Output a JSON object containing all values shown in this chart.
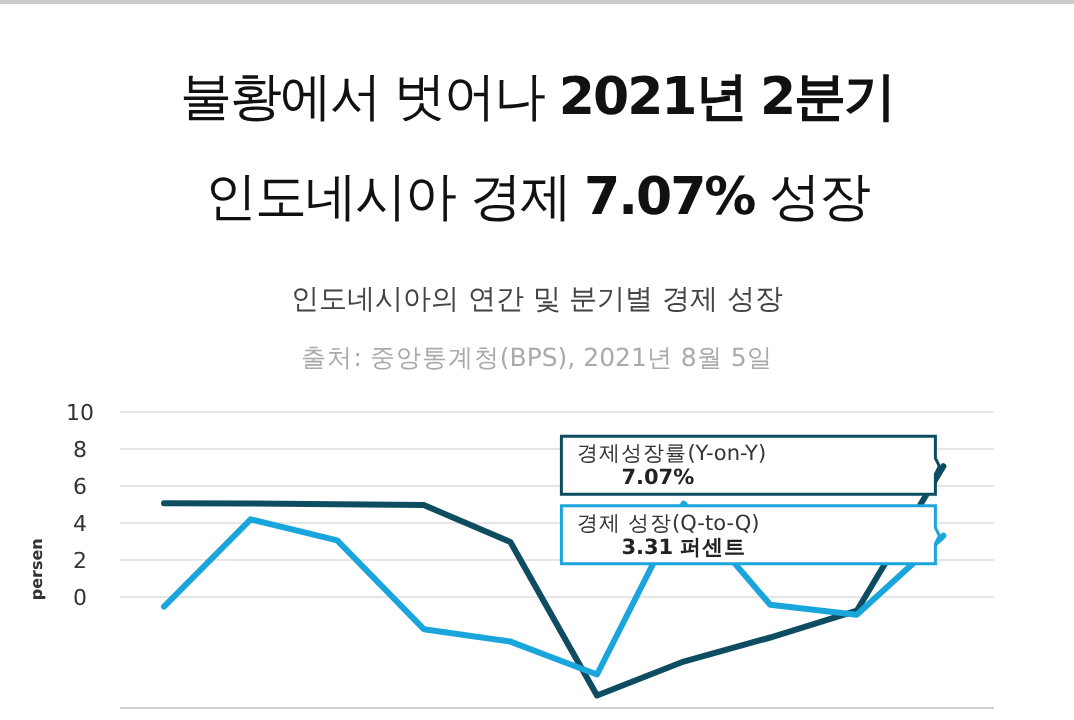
{
  "chart_data": {
    "type": "line",
    "title": "불황에서 벗어나 2021년 2분기\n인도네시아 경제 7.07% 성장",
    "subtitle": "인도네시아의 연간 및 분기별 경제 성장",
    "ylabel": "persen",
    "categories": [
      null,
      null,
      null,
      null,
      null,
      null,
      null,
      null,
      null,
      null
    ],
    "series": [
      {
        "color": "#0e4d61",
        "values": [
          5.07,
          5.05,
          5.02,
          4.97,
          2.97,
          -5.32,
          -3.49,
          -2.19,
          -0.74,
          7.07
        ]
      },
      {
        "color": "#1ba5dd",
        "values": [
          -0.52,
          4.2,
          3.06,
          -1.74,
          -2.41,
          -4.19,
          5.05,
          -0.42,
          -0.96,
          3.31
        ]
      }
    ],
    "ylim": [
      -6,
      10
    ],
    "yticks": [
      0,
      2,
      4,
      6,
      8,
      10
    ],
    "grid": "y",
    "marker": "none",
    "line_style": "solid",
    "annotations": [
      "출처: 중앙통계청(BPS), 2021년 8월 5일",
      "경제성장률(Y-on-Y)\n7.07%",
      "경제 성장(Q-to-Q)\n3.31 퍼센트"
    ]
  }
}
